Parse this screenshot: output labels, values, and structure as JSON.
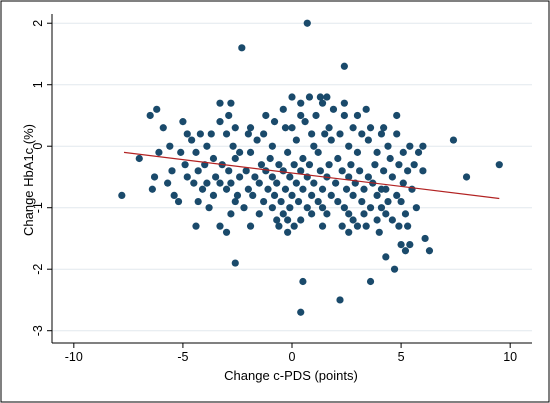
{
  "chart_data": {
    "type": "scatter",
    "title": "",
    "xlabel": "Change c-PDS (points)",
    "ylabel": "Change HbA1c (%)",
    "xlim": [
      -11,
      11
    ],
    "ylim": [
      -3.2,
      2.15
    ],
    "x_ticks": [
      -10,
      -5,
      0,
      5,
      10
    ],
    "y_ticks": [
      -3,
      -2,
      -1,
      0,
      1,
      2
    ],
    "grid": "horizontal",
    "legend": "none",
    "colors": {
      "points": "#1a4a6b",
      "fit_line": "#b22222",
      "grid": "#e2e8ee",
      "axis": "#000000",
      "frame": "#000000"
    },
    "fit_line": {
      "x": [
        -7.7,
        9.5
      ],
      "y": [
        -0.1,
        -0.85
      ]
    },
    "points": [
      {
        "x": 0.7,
        "y": 2.0
      },
      {
        "x": -2.3,
        "y": 1.6
      },
      {
        "x": 2.4,
        "y": 1.3
      },
      {
        "x": 0.0,
        "y": 0.8
      },
      {
        "x": 0.8,
        "y": 0.8
      },
      {
        "x": 1.3,
        "y": 0.8
      },
      {
        "x": 1.6,
        "y": 0.8
      },
      {
        "x": -3.3,
        "y": 0.7
      },
      {
        "x": -2.8,
        "y": 0.7
      },
      {
        "x": 0.4,
        "y": 0.7
      },
      {
        "x": 1.4,
        "y": 0.7
      },
      {
        "x": 2.4,
        "y": 0.7
      },
      {
        "x": -6.2,
        "y": 0.6
      },
      {
        "x": -0.4,
        "y": 0.6
      },
      {
        "x": 1.9,
        "y": 0.6
      },
      {
        "x": 3.4,
        "y": 0.6
      },
      {
        "x": -6.5,
        "y": 0.5
      },
      {
        "x": -2.9,
        "y": 0.5
      },
      {
        "x": -1.2,
        "y": 0.5
      },
      {
        "x": 0.4,
        "y": 0.5
      },
      {
        "x": 1.1,
        "y": 0.5
      },
      {
        "x": 2.4,
        "y": 0.5
      },
      {
        "x": 3.0,
        "y": 0.5
      },
      {
        "x": 4.8,
        "y": 0.5
      },
      {
        "x": -5.9,
        "y": 0.3
      },
      {
        "x": -5.0,
        "y": 0.4
      },
      {
        "x": -3.3,
        "y": 0.4
      },
      {
        "x": -2.6,
        "y": 0.3
      },
      {
        "x": -1.9,
        "y": 0.3
      },
      {
        "x": -0.8,
        "y": 0.4
      },
      {
        "x": 0.6,
        "y": 0.4
      },
      {
        "x": 1.7,
        "y": 0.3
      },
      {
        "x": 2.8,
        "y": 0.3
      },
      {
        "x": 3.6,
        "y": 0.3
      },
      {
        "x": 4.2,
        "y": 0.3
      },
      {
        "x": -4.8,
        "y": 0.2
      },
      {
        "x": -4.2,
        "y": 0.2
      },
      {
        "x": -3.7,
        "y": 0.2
      },
      {
        "x": -3.0,
        "y": 0.2
      },
      {
        "x": -2.0,
        "y": 0.2
      },
      {
        "x": -1.3,
        "y": 0.2
      },
      {
        "x": -0.3,
        "y": 0.3
      },
      {
        "x": 0.0,
        "y": 0.3
      },
      {
        "x": 0.9,
        "y": 0.2
      },
      {
        "x": 1.5,
        "y": 0.2
      },
      {
        "x": 2.2,
        "y": 0.2
      },
      {
        "x": 3.2,
        "y": 0.2
      },
      {
        "x": 4.1,
        "y": 0.2
      },
      {
        "x": 4.8,
        "y": 0.2
      },
      {
        "x": -5.6,
        "y": 0.0
      },
      {
        "x": -4.6,
        "y": 0.1
      },
      {
        "x": -3.9,
        "y": 0.0
      },
      {
        "x": -2.7,
        "y": 0.0
      },
      {
        "x": -1.6,
        "y": 0.1
      },
      {
        "x": -0.9,
        "y": 0.0
      },
      {
        "x": 0.2,
        "y": 0.1
      },
      {
        "x": 1.0,
        "y": 0.0
      },
      {
        "x": 1.8,
        "y": 0.1
      },
      {
        "x": 2.6,
        "y": 0.0
      },
      {
        "x": 3.5,
        "y": 0.1
      },
      {
        "x": 4.4,
        "y": 0.0
      },
      {
        "x": 5.4,
        "y": 0.0
      },
      {
        "x": 6.0,
        "y": 0.0
      },
      {
        "x": 7.4,
        "y": 0.1
      },
      {
        "x": -5.1,
        "y": -0.1
      },
      {
        "x": -4.4,
        "y": -0.1
      },
      {
        "x": -3.6,
        "y": -0.2
      },
      {
        "x": -2.4,
        "y": -0.1
      },
      {
        "x": -1.9,
        "y": -0.1
      },
      {
        "x": -1.0,
        "y": -0.2
      },
      {
        "x": -0.2,
        "y": -0.1
      },
      {
        "x": 0.5,
        "y": -0.2
      },
      {
        "x": 1.2,
        "y": -0.1
      },
      {
        "x": 2.1,
        "y": -0.2
      },
      {
        "x": 3.0,
        "y": -0.1
      },
      {
        "x": 3.9,
        "y": -0.1
      },
      {
        "x": 4.5,
        "y": -0.2
      },
      {
        "x": 5.1,
        "y": -0.1
      },
      {
        "x": 5.8,
        "y": -0.1
      },
      {
        "x": -7.0,
        "y": -0.2
      },
      {
        "x": -6.1,
        "y": -0.1
      },
      {
        "x": -4.9,
        "y": -0.3
      },
      {
        "x": -4.0,
        "y": -0.3
      },
      {
        "x": -3.2,
        "y": -0.3
      },
      {
        "x": -2.6,
        "y": -0.2
      },
      {
        "x": -1.4,
        "y": -0.3
      },
      {
        "x": -0.6,
        "y": -0.3
      },
      {
        "x": 0.1,
        "y": -0.3
      },
      {
        "x": 0.8,
        "y": -0.3
      },
      {
        "x": 1.7,
        "y": -0.3
      },
      {
        "x": 2.7,
        "y": -0.3
      },
      {
        "x": 3.8,
        "y": -0.3
      },
      {
        "x": 4.9,
        "y": -0.3
      },
      {
        "x": 5.6,
        "y": -0.3
      },
      {
        "x": 6.0,
        "y": -0.4
      },
      {
        "x": -5.5,
        "y": -0.4
      },
      {
        "x": -4.3,
        "y": -0.4
      },
      {
        "x": -3.5,
        "y": -0.5
      },
      {
        "x": -2.9,
        "y": -0.4
      },
      {
        "x": -2.1,
        "y": -0.4
      },
      {
        "x": -1.2,
        "y": -0.4
      },
      {
        "x": -0.4,
        "y": -0.4
      },
      {
        "x": 0.4,
        "y": -0.4
      },
      {
        "x": 1.3,
        "y": -0.4
      },
      {
        "x": 2.3,
        "y": -0.4
      },
      {
        "x": 3.1,
        "y": -0.4
      },
      {
        "x": 4.2,
        "y": -0.4
      },
      {
        "x": 5.3,
        "y": -0.4
      },
      {
        "x": -6.3,
        "y": -0.5
      },
      {
        "x": -4.8,
        "y": -0.5
      },
      {
        "x": -3.9,
        "y": -0.6
      },
      {
        "x": -2.4,
        "y": -0.5
      },
      {
        "x": -1.7,
        "y": -0.5
      },
      {
        "x": -0.9,
        "y": -0.5
      },
      {
        "x": -0.1,
        "y": -0.5
      },
      {
        "x": 0.7,
        "y": -0.5
      },
      {
        "x": 1.6,
        "y": -0.5
      },
      {
        "x": 2.6,
        "y": -0.5
      },
      {
        "x": 3.5,
        "y": -0.5
      },
      {
        "x": 4.6,
        "y": -0.5
      },
      {
        "x": 5.1,
        "y": -0.6
      },
      {
        "x": 8.0,
        "y": -0.5
      },
      {
        "x": 9.5,
        "y": -0.3
      },
      {
        "x": -5.7,
        "y": -0.6
      },
      {
        "x": -4.5,
        "y": -0.6
      },
      {
        "x": -3.3,
        "y": -0.6
      },
      {
        "x": -2.8,
        "y": -0.6
      },
      {
        "x": -1.5,
        "y": -0.6
      },
      {
        "x": -0.7,
        "y": -0.6
      },
      {
        "x": 0.2,
        "y": -0.6
      },
      {
        "x": 1.0,
        "y": -0.6
      },
      {
        "x": 2.0,
        "y": -0.6
      },
      {
        "x": 2.9,
        "y": -0.6
      },
      {
        "x": 3.7,
        "y": -0.6
      },
      {
        "x": 4.3,
        "y": -0.7
      },
      {
        "x": -6.4,
        "y": -0.7
      },
      {
        "x": -4.1,
        "y": -0.7
      },
      {
        "x": -3.0,
        "y": -0.7
      },
      {
        "x": -2.0,
        "y": -0.7
      },
      {
        "x": -1.1,
        "y": -0.7
      },
      {
        "x": -0.3,
        "y": -0.7
      },
      {
        "x": 0.5,
        "y": -0.7
      },
      {
        "x": 1.4,
        "y": -0.7
      },
      {
        "x": 2.5,
        "y": -0.7
      },
      {
        "x": 3.3,
        "y": -0.7
      },
      {
        "x": 4.1,
        "y": -0.7
      },
      {
        "x": 5.5,
        "y": -0.7
      },
      {
        "x": -7.8,
        "y": -0.8
      },
      {
        "x": -5.4,
        "y": -0.8
      },
      {
        "x": -3.6,
        "y": -0.8
      },
      {
        "x": -2.5,
        "y": -0.8
      },
      {
        "x": -1.8,
        "y": -0.8
      },
      {
        "x": -0.8,
        "y": -0.8
      },
      {
        "x": 0.0,
        "y": -0.8
      },
      {
        "x": 0.9,
        "y": -0.8
      },
      {
        "x": 1.8,
        "y": -0.8
      },
      {
        "x": 2.8,
        "y": -0.8
      },
      {
        "x": 3.9,
        "y": -0.8
      },
      {
        "x": 4.8,
        "y": -0.8
      },
      {
        "x": -5.2,
        "y": -0.9
      },
      {
        "x": -4.3,
        "y": -0.9
      },
      {
        "x": -2.6,
        "y": -0.9
      },
      {
        "x": -1.3,
        "y": -0.9
      },
      {
        "x": -0.5,
        "y": -0.9
      },
      {
        "x": 0.3,
        "y": -0.9
      },
      {
        "x": 1.2,
        "y": -0.9
      },
      {
        "x": 2.1,
        "y": -0.9
      },
      {
        "x": 3.2,
        "y": -0.9
      },
      {
        "x": 4.4,
        "y": -0.9
      },
      {
        "x": 5.0,
        "y": -0.9
      },
      {
        "x": -3.8,
        "y": -1.0
      },
      {
        "x": -2.2,
        "y": -1.0
      },
      {
        "x": -0.9,
        "y": -1.0
      },
      {
        "x": -0.1,
        "y": -1.0
      },
      {
        "x": 0.7,
        "y": -1.0
      },
      {
        "x": 1.4,
        "y": -1.0
      },
      {
        "x": 2.4,
        "y": -1.0
      },
      {
        "x": 3.6,
        "y": -1.0
      },
      {
        "x": 4.1,
        "y": -1.0
      },
      {
        "x": 5.7,
        "y": -1.0
      },
      {
        "x": -2.8,
        "y": -1.1
      },
      {
        "x": -1.5,
        "y": -1.1
      },
      {
        "x": -0.4,
        "y": -1.1
      },
      {
        "x": 0.9,
        "y": -1.1
      },
      {
        "x": 1.6,
        "y": -1.1
      },
      {
        "x": 2.6,
        "y": -1.1
      },
      {
        "x": 3.3,
        "y": -1.1
      },
      {
        "x": 4.3,
        "y": -1.1
      },
      {
        "x": 5.2,
        "y": -1.1
      },
      {
        "x": -0.7,
        "y": -1.2
      },
      {
        "x": -0.2,
        "y": -1.2
      },
      {
        "x": 0.4,
        "y": -1.2
      },
      {
        "x": 2.8,
        "y": -1.2
      },
      {
        "x": 3.9,
        "y": -1.2
      },
      {
        "x": 4.6,
        "y": -1.2
      },
      {
        "x": -4.4,
        "y": -1.3
      },
      {
        "x": -3.3,
        "y": -1.3
      },
      {
        "x": -1.9,
        "y": -1.3
      },
      {
        "x": -0.6,
        "y": -1.3
      },
      {
        "x": 0.1,
        "y": -1.3
      },
      {
        "x": 1.4,
        "y": -1.3
      },
      {
        "x": 2.3,
        "y": -1.3
      },
      {
        "x": 3.0,
        "y": -1.3
      },
      {
        "x": 3.4,
        "y": -1.3
      },
      {
        "x": 4.9,
        "y": -1.3
      },
      {
        "x": 5.3,
        "y": -1.3
      },
      {
        "x": -3.0,
        "y": -1.4
      },
      {
        "x": -0.2,
        "y": -1.4
      },
      {
        "x": 2.6,
        "y": -1.4
      },
      {
        "x": 4.0,
        "y": -1.4
      },
      {
        "x": 6.1,
        "y": -1.5
      },
      {
        "x": 5.0,
        "y": -1.6
      },
      {
        "x": 5.4,
        "y": -1.6
      },
      {
        "x": 5.2,
        "y": -1.7
      },
      {
        "x": 6.3,
        "y": -1.7
      },
      {
        "x": 4.3,
        "y": -1.8
      },
      {
        "x": -2.6,
        "y": -1.9
      },
      {
        "x": 4.7,
        "y": -2.0
      },
      {
        "x": 3.6,
        "y": -2.2
      },
      {
        "x": 0.5,
        "y": -2.2
      },
      {
        "x": 2.2,
        "y": -2.5
      },
      {
        "x": 0.4,
        "y": -2.7
      }
    ]
  }
}
